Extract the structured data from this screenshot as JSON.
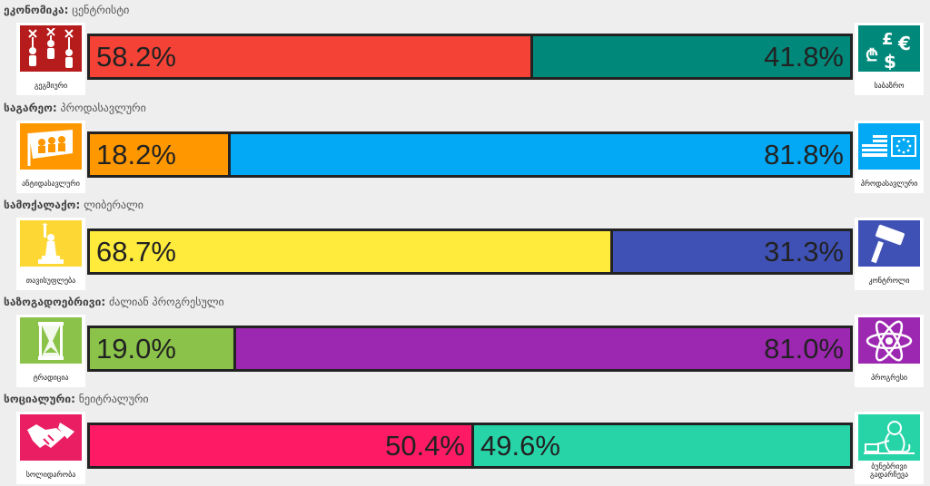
{
  "axes": [
    {
      "category": "ეკონომიკა:",
      "result": "ცენტრისტი",
      "left": {
        "label": "გეგმიური",
        "value": 58.2,
        "text": "58.2%",
        "color": "#f44336",
        "icon_bg": "#b71c1c",
        "icon": "puppets-icon"
      },
      "right": {
        "label": "საბაზრო",
        "value": 41.8,
        "text": "41.8%",
        "color": "#00897b",
        "icon_bg": "#00897b",
        "icon": "currency-icon"
      }
    },
    {
      "category": "საგარეო:",
      "result": "პროდასავლური",
      "left": {
        "label": "ანტიდასავლური",
        "value": 18.2,
        "text": "18.2%",
        "color": "#ff9800",
        "icon_bg": "#ff9800",
        "icon": "flag-icon"
      },
      "right": {
        "label": "პროდასავლური",
        "value": 81.8,
        "text": "81.8%",
        "color": "#03a9f4",
        "icon_bg": "#03a9f4",
        "icon": "us-eu-flags-icon"
      }
    },
    {
      "category": "სამოქალაქო:",
      "result": "ლიბერალი",
      "left": {
        "label": "თავისუფლება",
        "value": 68.7,
        "text": "68.7%",
        "color": "#ffeb3b",
        "icon_bg": "#fdd835",
        "icon": "statue-of-liberty-icon"
      },
      "right": {
        "label": "კონტროლი",
        "value": 31.3,
        "text": "31.3%",
        "color": "#3f51b5",
        "icon_bg": "#3f51b5",
        "icon": "gavel-icon"
      }
    },
    {
      "category": "საზოგადოებრივი:",
      "result": "ძალიან პროგრესული",
      "left": {
        "label": "ტრადიცია",
        "value": 19.0,
        "text": "19.0%",
        "color": "#8bc34a",
        "icon_bg": "#8bc34a",
        "icon": "hourglass-icon"
      },
      "right": {
        "label": "პროგრესი",
        "value": 81.0,
        "text": "81.0%",
        "color": "#9c27b0",
        "icon_bg": "#9c27b0",
        "icon": "atom-icon"
      }
    },
    {
      "category": "სოციალური:",
      "result": "ნეიტრალური",
      "left": {
        "label": "სოლიდარობა",
        "value": 50.4,
        "text": "50.4%",
        "color": "#ff1a66",
        "icon_bg": "#e91e63",
        "icon": "handshake-icon"
      },
      "right": {
        "label": "ბუნებრივი გადარჩევა",
        "value": 49.6,
        "text": "49.6%",
        "color": "#26d4a8",
        "icon_bg": "#26d4a8",
        "icon": "monkey-icon"
      }
    }
  ]
}
